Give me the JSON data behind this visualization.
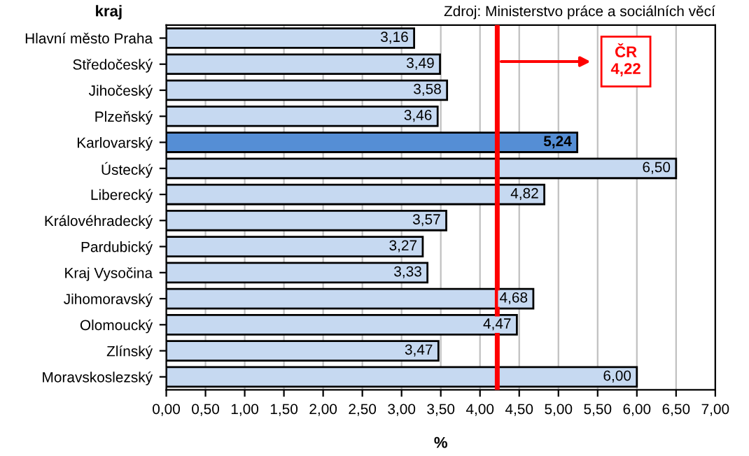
{
  "chart_data": {
    "type": "bar",
    "orientation": "horizontal",
    "ylabel": "kraj",
    "xlabel": "%",
    "categories": [
      "Hlavní město Praha",
      "Středočeský",
      "Jihočeský",
      "Plzeňský",
      "Karlovarský",
      "Ústecký",
      "Liberecký",
      "Královéhradecký",
      "Pardubický",
      "Kraj Vysočina",
      "Jihomoravský",
      "Olomoucký",
      "Zlínský",
      "Moravskoslezský"
    ],
    "values": [
      3.16,
      3.49,
      3.58,
      3.46,
      5.24,
      6.5,
      4.82,
      3.57,
      3.27,
      3.33,
      4.68,
      4.47,
      3.47,
      6.0
    ],
    "value_labels": [
      "3,16",
      "3,49",
      "3,58",
      "3,46",
      "5,24",
      "6,50",
      "4,82",
      "3,57",
      "3,27",
      "3,33",
      "4,68",
      "4,47",
      "3,47",
      "6,00"
    ],
    "colors": [
      "#c6d9f1",
      "#c6d9f1",
      "#c6d9f1",
      "#c6d9f1",
      "#558ed5",
      "#c6d9f1",
      "#c6d9f1",
      "#c6d9f1",
      "#c6d9f1",
      "#c6d9f1",
      "#c6d9f1",
      "#c6d9f1",
      "#c6d9f1",
      "#c6d9f1"
    ],
    "xlim": [
      0,
      7
    ],
    "xticks": [
      {
        "value": 0,
        "label": "0,00"
      },
      {
        "value": 0.5,
        "label": "0,50"
      },
      {
        "value": 1,
        "label": "1,00"
      },
      {
        "value": 1.5,
        "label": "1,50"
      },
      {
        "value": 2,
        "label": "2,00"
      },
      {
        "value": 2.5,
        "label": "2,50"
      },
      {
        "value": 3,
        "label": "3,00"
      },
      {
        "value": 3.5,
        "label": "3,50"
      },
      {
        "value": 4,
        "label": "4,00"
      },
      {
        "value": 4.5,
        "label": "4,50"
      },
      {
        "value": 5,
        "label": "5,00"
      },
      {
        "value": 5.5,
        "label": "5,50"
      },
      {
        "value": 6,
        "label": "6,00"
      },
      {
        "value": 6.5,
        "label": "6,50"
      },
      {
        "value": 7,
        "label": "7,00"
      }
    ],
    "grid": "x",
    "ref_lines": [
      {
        "axis": "x",
        "value": 4.22,
        "label": "ČR\n4,22",
        "color": "#ff0000"
      }
    ],
    "annotations": [
      "Zdroj: Ministerstvo práce a sociálních věcí"
    ]
  }
}
